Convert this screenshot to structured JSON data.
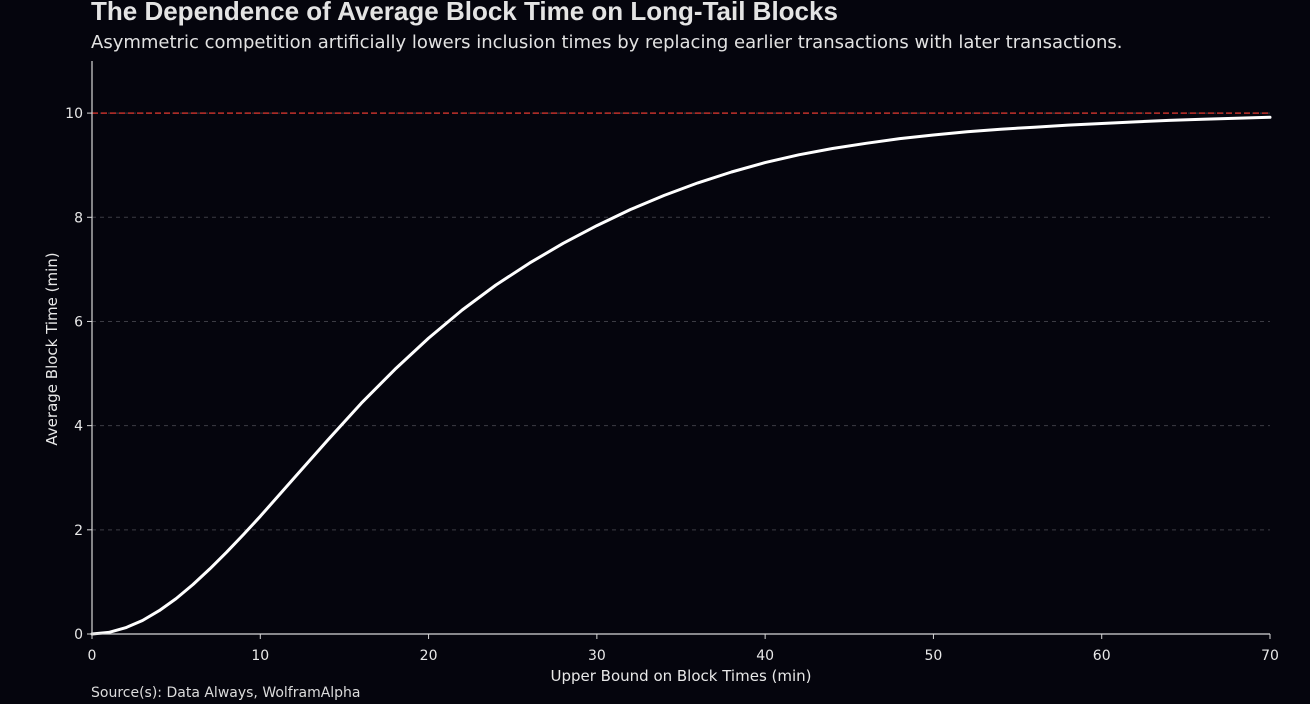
{
  "chart_data": {
    "type": "line",
    "title": "The Dependence of Average Block Time on Long-Tail Blocks",
    "subtitle": "Asymmetric competition artificially lowers inclusion times by replacing earlier transactions with later transactions.",
    "xlabel": "Upper Bound on Block Times (min)",
    "ylabel": "Average Block Time (min)",
    "source": "Source(s): Data Always, WolframAlpha",
    "xlim": [
      0,
      70
    ],
    "ylim": [
      0,
      11
    ],
    "xticks": [
      0,
      10,
      20,
      30,
      40,
      50,
      60,
      70
    ],
    "yticks": [
      0,
      2,
      4,
      6,
      8,
      10
    ],
    "grid": "horizontal dashed",
    "reference_line": {
      "y": 10,
      "color": "#c0302a",
      "style": "dashed"
    },
    "series": [
      {
        "color": "#ffffff",
        "x": [
          0,
          1,
          2,
          3,
          4,
          5,
          6,
          7,
          8,
          9,
          10,
          12,
          14,
          16,
          18,
          20,
          22,
          24,
          26,
          28,
          30,
          32,
          34,
          36,
          38,
          40,
          42,
          44,
          46,
          48,
          50,
          52,
          54,
          56,
          58,
          60,
          62,
          64,
          66,
          68,
          70
        ],
        "values": [
          0,
          0.03,
          0.12,
          0.26,
          0.45,
          0.68,
          0.95,
          1.25,
          1.57,
          1.91,
          2.26,
          2.99,
          3.72,
          4.43,
          5.08,
          5.68,
          6.22,
          6.7,
          7.12,
          7.5,
          7.84,
          8.15,
          8.42,
          8.66,
          8.87,
          9.05,
          9.2,
          9.32,
          9.42,
          9.51,
          9.58,
          9.64,
          9.69,
          9.73,
          9.77,
          9.8,
          9.83,
          9.86,
          9.88,
          9.9,
          9.92
        ]
      }
    ]
  },
  "colors": {
    "background": "#05050d",
    "axis": "#d8d8d8",
    "grid": "#3c3c44",
    "curve": "#ffffff",
    "reference": "#c0302a"
  }
}
